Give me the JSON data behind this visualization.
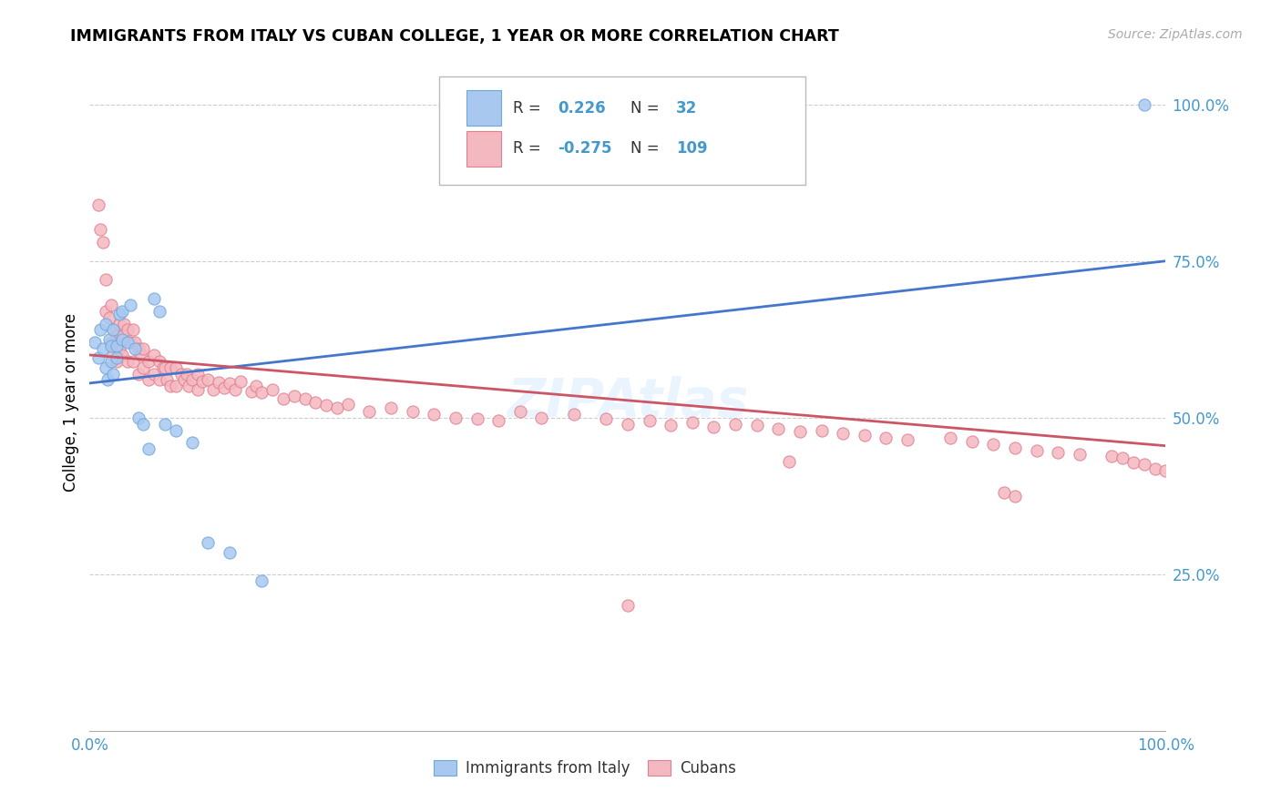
{
  "title": "IMMIGRANTS FROM ITALY VS CUBAN COLLEGE, 1 YEAR OR MORE CORRELATION CHART",
  "source": "Source: ZipAtlas.com",
  "ylabel": "College, 1 year or more",
  "blue_scatter_color": "#a8c8f0",
  "blue_edge_color": "#6fa8dc",
  "pink_scatter_color": "#f4b8c0",
  "pink_edge_color": "#e08090",
  "blue_line_color": "#4477cc",
  "pink_line_color": "#cc5566",
  "grid_color": "#cccccc",
  "axis_label_color": "#4499cc",
  "watermark_color": "#d8e8f0",
  "italy_x": [
    0.005,
    0.008,
    0.01,
    0.012,
    0.015,
    0.015,
    0.017,
    0.018,
    0.02,
    0.02,
    0.022,
    0.022,
    0.025,
    0.025,
    0.028,
    0.03,
    0.03,
    0.035,
    0.038,
    0.042,
    0.045,
    0.05,
    0.055,
    0.06,
    0.065,
    0.07,
    0.08,
    0.095,
    0.11,
    0.13,
    0.16,
    0.98
  ],
  "italy_y": [
    0.62,
    0.595,
    0.64,
    0.61,
    0.65,
    0.58,
    0.56,
    0.625,
    0.615,
    0.59,
    0.57,
    0.64,
    0.615,
    0.595,
    0.665,
    0.67,
    0.625,
    0.62,
    0.68,
    0.61,
    0.5,
    0.49,
    0.45,
    0.69,
    0.67,
    0.49,
    0.48,
    0.46,
    0.3,
    0.285,
    0.24,
    1.0
  ],
  "cuba_x": [
    0.008,
    0.01,
    0.012,
    0.015,
    0.015,
    0.018,
    0.02,
    0.02,
    0.022,
    0.022,
    0.025,
    0.025,
    0.028,
    0.028,
    0.03,
    0.03,
    0.032,
    0.035,
    0.035,
    0.038,
    0.04,
    0.04,
    0.042,
    0.045,
    0.045,
    0.048,
    0.05,
    0.05,
    0.055,
    0.055,
    0.06,
    0.06,
    0.065,
    0.065,
    0.068,
    0.07,
    0.072,
    0.075,
    0.075,
    0.08,
    0.08,
    0.085,
    0.088,
    0.09,
    0.092,
    0.095,
    0.1,
    0.1,
    0.105,
    0.11,
    0.115,
    0.12,
    0.125,
    0.13,
    0.135,
    0.14,
    0.15,
    0.155,
    0.16,
    0.17,
    0.18,
    0.19,
    0.2,
    0.21,
    0.22,
    0.23,
    0.24,
    0.26,
    0.28,
    0.3,
    0.32,
    0.34,
    0.36,
    0.38,
    0.4,
    0.42,
    0.45,
    0.48,
    0.5,
    0.52,
    0.54,
    0.56,
    0.58,
    0.6,
    0.62,
    0.64,
    0.66,
    0.68,
    0.7,
    0.72,
    0.74,
    0.76,
    0.8,
    0.82,
    0.84,
    0.86,
    0.88,
    0.9,
    0.92,
    0.95,
    0.96,
    0.97,
    0.98,
    0.99,
    1.0,
    0.5,
    0.85,
    0.86,
    0.65
  ],
  "cuba_y": [
    0.84,
    0.8,
    0.78,
    0.72,
    0.67,
    0.66,
    0.68,
    0.62,
    0.64,
    0.6,
    0.63,
    0.59,
    0.65,
    0.61,
    0.63,
    0.6,
    0.65,
    0.64,
    0.59,
    0.62,
    0.64,
    0.59,
    0.62,
    0.61,
    0.57,
    0.6,
    0.61,
    0.58,
    0.59,
    0.56,
    0.6,
    0.57,
    0.59,
    0.56,
    0.58,
    0.58,
    0.56,
    0.58,
    0.55,
    0.58,
    0.55,
    0.57,
    0.56,
    0.57,
    0.55,
    0.56,
    0.57,
    0.545,
    0.558,
    0.56,
    0.545,
    0.556,
    0.548,
    0.555,
    0.545,
    0.558,
    0.542,
    0.55,
    0.54,
    0.545,
    0.53,
    0.535,
    0.53,
    0.525,
    0.52,
    0.515,
    0.522,
    0.51,
    0.515,
    0.51,
    0.505,
    0.5,
    0.498,
    0.495,
    0.51,
    0.5,
    0.505,
    0.498,
    0.49,
    0.495,
    0.488,
    0.492,
    0.485,
    0.49,
    0.488,
    0.482,
    0.478,
    0.48,
    0.475,
    0.472,
    0.468,
    0.465,
    0.468,
    0.462,
    0.458,
    0.452,
    0.448,
    0.445,
    0.442,
    0.438,
    0.435,
    0.428,
    0.425,
    0.418,
    0.415,
    0.2,
    0.38,
    0.375,
    0.43
  ],
  "italy_line_x0": 0.0,
  "italy_line_y0": 0.555,
  "italy_line_x1": 1.0,
  "italy_line_y1": 0.75,
  "cuba_line_x0": 0.0,
  "cuba_line_y0": 0.6,
  "cuba_line_x1": 1.0,
  "cuba_line_y1": 0.455,
  "xlim": [
    0.0,
    1.0
  ],
  "ylim": [
    0.0,
    1.05
  ]
}
